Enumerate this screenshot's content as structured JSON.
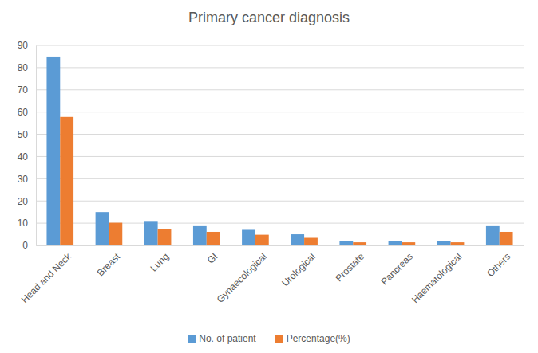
{
  "chart_data": {
    "type": "bar",
    "title": "Primary cancer diagnosis",
    "categories": [
      "Head and Neck",
      "Breast",
      "Lung",
      "GI",
      "Gynaecological",
      "Urological",
      "Prostate",
      "Pancreas",
      "Haematological",
      "Others"
    ],
    "series": [
      {
        "name": "No. of patient",
        "color": "#5b9bd5",
        "values": [
          85,
          15,
          11,
          9,
          7,
          5,
          2,
          2,
          2,
          9
        ]
      },
      {
        "name": "Percentage(%)",
        "color": "#ed7d31",
        "values": [
          57.8,
          10.2,
          7.5,
          6.1,
          4.8,
          3.4,
          1.4,
          1.4,
          1.4,
          6.1
        ]
      }
    ],
    "ylim": [
      0,
      90
    ],
    "yticks": [
      0,
      10,
      20,
      30,
      40,
      50,
      60,
      70,
      80,
      90
    ],
    "grid": true,
    "legend": "bottom"
  }
}
